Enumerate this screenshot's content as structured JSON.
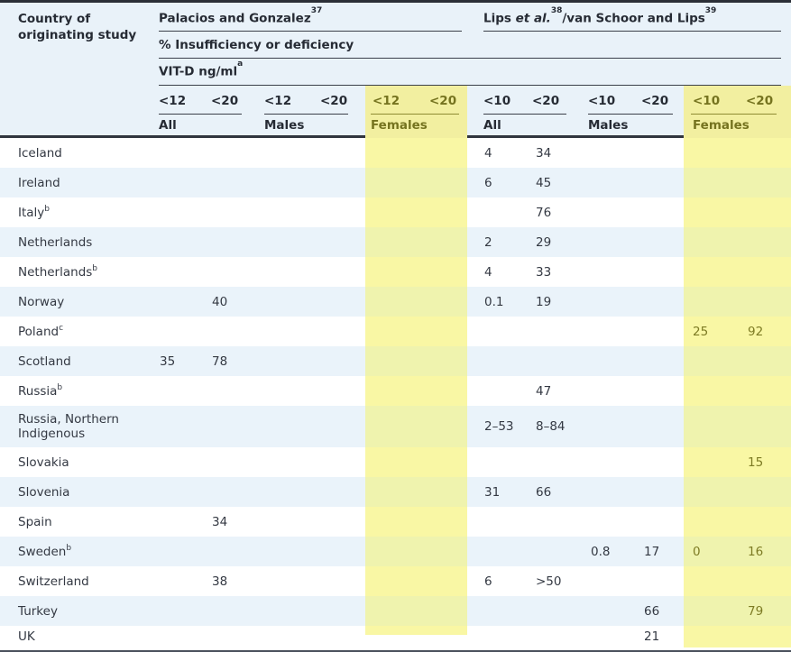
{
  "colors": {
    "header_background": "#e9f2f9",
    "row_stripe_blue": "#eaf3fa",
    "highlight_yellow_header": "#f2efa0",
    "highlight_yellow_on_white": "#f9f7a4",
    "highlight_yellow_on_blue": "#eff3ae",
    "text_dark": "#2e333c",
    "text_olive": "#75731f",
    "border_dark": "#2b2f37"
  },
  "header": {
    "corner_line1": "Country of",
    "corner_line2": "originating study",
    "group1_title": "Palacios and Gonzalez",
    "group1_sup": "37",
    "group2_pre": "Lips ",
    "group2_italic": "et al.",
    "group2_sup1": "38",
    "group2_mid": "/van Schoor and Lips",
    "group2_sup2": "39",
    "measure_label": "% Insufficiency or deficiency",
    "unit_label": "VIT-D ng/ml",
    "unit_sup": "a",
    "col_headers": [
      "<12",
      "<20",
      "<12",
      "<20",
      "<12",
      "<20",
      "<10",
      "<20",
      "<10",
      "<20",
      "<10",
      "<20"
    ],
    "subgroups": [
      "All",
      "Males",
      "Females",
      "All",
      "Males",
      "Females"
    ]
  },
  "table": {
    "value_column_keys": [
      "palacios_all_lt12",
      "palacios_all_lt20",
      "palacios_males_lt12",
      "palacios_males_lt20",
      "palacios_females_lt12",
      "palacios_females_lt20",
      "lips_all_lt10",
      "lips_all_lt20",
      "lips_males_lt10",
      "lips_males_lt20",
      "lips_females_lt10",
      "lips_females_lt20"
    ],
    "rows": [
      {
        "country": "Iceland",
        "sup": "",
        "values": [
          "",
          "",
          "",
          "",
          "",
          "",
          "4",
          "34",
          "",
          "",
          "",
          ""
        ]
      },
      {
        "country": "Ireland",
        "sup": "",
        "values": [
          "",
          "",
          "",
          "",
          "",
          "",
          "6",
          "45",
          "",
          "",
          "",
          ""
        ]
      },
      {
        "country": "Italy",
        "sup": "b",
        "values": [
          "",
          "",
          "",
          "",
          "",
          "",
          "",
          "76",
          "",
          "",
          "",
          ""
        ]
      },
      {
        "country": "Netherlands",
        "sup": "",
        "values": [
          "",
          "",
          "",
          "",
          "",
          "",
          "2",
          "29",
          "",
          "",
          "",
          ""
        ]
      },
      {
        "country": "Netherlands",
        "sup": "b",
        "values": [
          "",
          "",
          "",
          "",
          "",
          "",
          "4",
          "33",
          "",
          "",
          "",
          ""
        ]
      },
      {
        "country": "Norway",
        "sup": "",
        "values": [
          "",
          "40",
          "",
          "",
          "",
          "",
          "0.1",
          "19",
          "",
          "",
          "",
          ""
        ]
      },
      {
        "country": "Poland",
        "sup": "c",
        "values": [
          "",
          "",
          "",
          "",
          "",
          "",
          "",
          "",
          "",
          "",
          "25",
          "92"
        ]
      },
      {
        "country": "Scotland",
        "sup": "",
        "values": [
          "35",
          "78",
          "",
          "",
          "",
          "",
          "",
          "",
          "",
          "",
          "",
          ""
        ]
      },
      {
        "country": "Russia",
        "sup": "b",
        "values": [
          "",
          "",
          "",
          "",
          "",
          "",
          "",
          "47",
          "",
          "",
          "",
          ""
        ]
      },
      {
        "country": "Russia, Northern Indigenous",
        "sup": "",
        "values": [
          "",
          "",
          "",
          "",
          "",
          "",
          "2–53",
          "8–84",
          "",
          "",
          "",
          ""
        ]
      },
      {
        "country": "Slovakia",
        "sup": "",
        "values": [
          "",
          "",
          "",
          "",
          "",
          "",
          "",
          "",
          "",
          "",
          "",
          "15"
        ]
      },
      {
        "country": "Slovenia",
        "sup": "",
        "values": [
          "",
          "",
          "",
          "",
          "",
          "",
          "31",
          "66",
          "",
          "",
          "",
          ""
        ]
      },
      {
        "country": "Spain",
        "sup": "",
        "values": [
          "",
          "34",
          "",
          "",
          "",
          "",
          "",
          "",
          "",
          "",
          "",
          ""
        ]
      },
      {
        "country": "Sweden",
        "sup": "b",
        "values": [
          "",
          "",
          "",
          "",
          "",
          "",
          "",
          "",
          "0.8",
          "17",
          "0",
          "16"
        ]
      },
      {
        "country": "Switzerland",
        "sup": "",
        "values": [
          "",
          "38",
          "",
          "",
          "",
          "",
          "6",
          ">50",
          "",
          "",
          "",
          ""
        ]
      },
      {
        "country": "Turkey",
        "sup": "",
        "values": [
          "",
          "",
          "",
          "",
          "",
          "",
          "",
          "",
          "",
          "66",
          "",
          "79"
        ]
      },
      {
        "country": "UK",
        "sup": "",
        "values": [
          "",
          "",
          "",
          "",
          "",
          "",
          "",
          "",
          "",
          "21",
          "",
          ""
        ]
      }
    ]
  }
}
